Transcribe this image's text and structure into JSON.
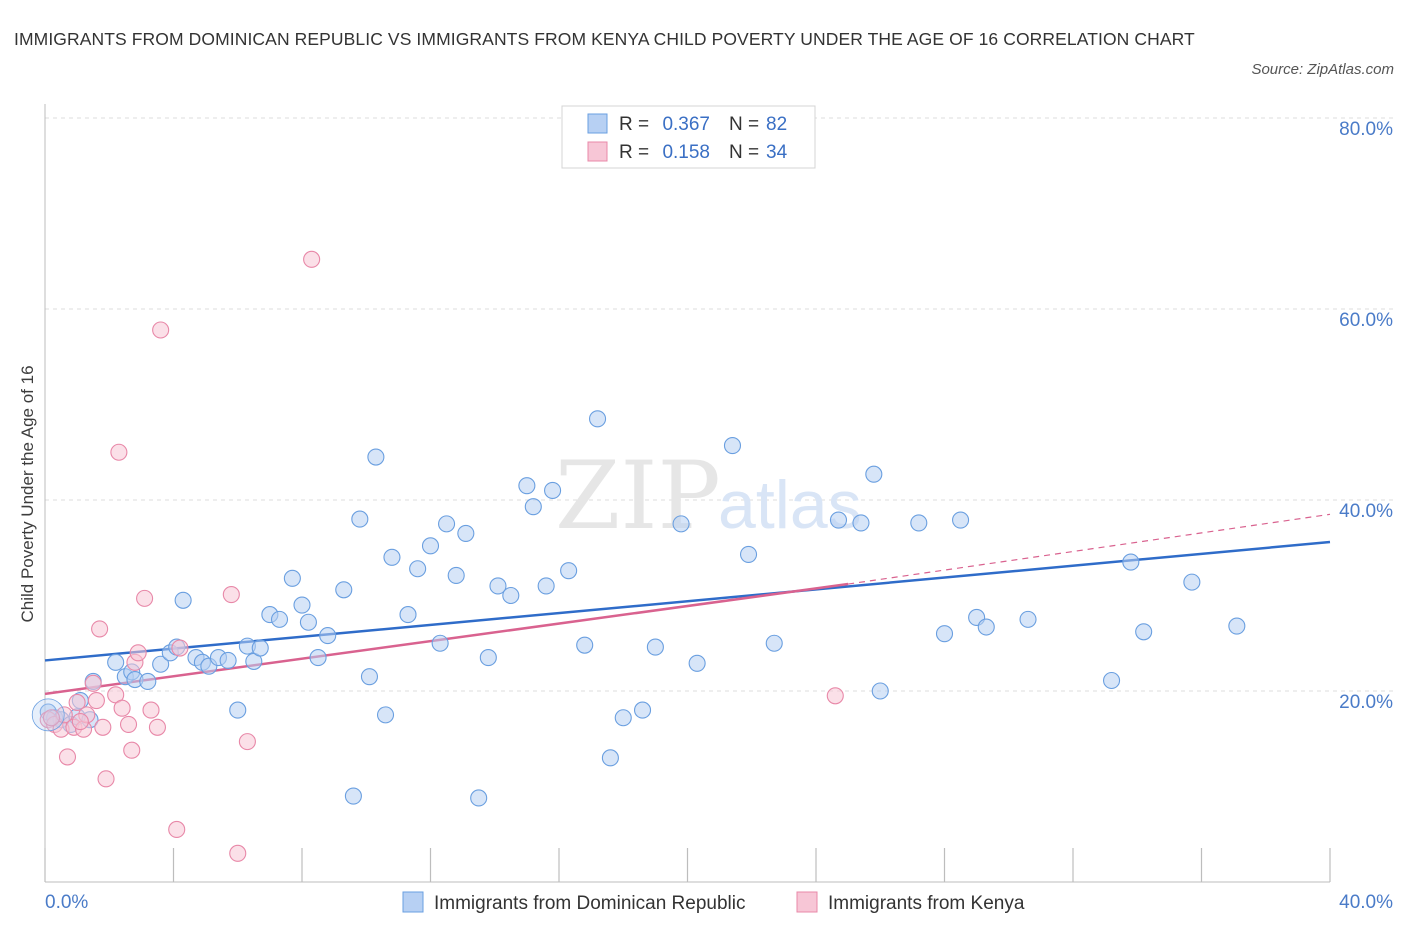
{
  "title": "IMMIGRANTS FROM DOMINICAN REPUBLIC VS IMMIGRANTS FROM KENYA CHILD POVERTY UNDER THE AGE OF 16 CORRELATION CHART",
  "source": "Source: ZipAtlas.com",
  "colors": {
    "blue": "#6a9fe0",
    "blue_fill": "#b7d0f3",
    "blue_line": "#2f6cc9",
    "pink": "#e888a8",
    "pink_fill": "#f7c6d6",
    "pink_line": "#d9628f",
    "grid": "#dcdcdc"
  },
  "chart_data": {
    "type": "scatter",
    "ylabel": "Child Poverty Under the Age of 16",
    "xlim": [
      0,
      40
    ],
    "ylim": [
      0,
      80
    ],
    "x_ticks": [
      "0.0%",
      "40.0%"
    ],
    "y_ticks": [
      {
        "value": 20,
        "label": "20.0%"
      },
      {
        "value": 40,
        "label": "40.0%"
      },
      {
        "value": 60,
        "label": "60.0%"
      },
      {
        "value": 80,
        "label": "80.0%"
      }
    ],
    "grid": true,
    "legend_position": "top-center",
    "stats": [
      {
        "r_label": "R =",
        "r": "0.367",
        "n_label": "N =",
        "n": "82"
      },
      {
        "r_label": "R =",
        "r": "0.158",
        "n_label": "N =",
        "n": "34"
      }
    ],
    "series": [
      {
        "name": "Immigrants from Dominican Republic",
        "color": "#6a9fe0",
        "trend": {
          "x": [
            0,
            40
          ],
          "y": [
            23.2,
            35.6
          ]
        },
        "points": [
          [
            0.1,
            17.8
          ],
          [
            0.3,
            17.2
          ],
          [
            0.5,
            17.0
          ],
          [
            0.8,
            16.5
          ],
          [
            1.0,
            17.3
          ],
          [
            1.1,
            19.0
          ],
          [
            1.4,
            17.0
          ],
          [
            1.5,
            21.0
          ],
          [
            2.2,
            23.0
          ],
          [
            2.5,
            21.5
          ],
          [
            2.7,
            22.0
          ],
          [
            2.8,
            21.2
          ],
          [
            3.2,
            21.0
          ],
          [
            3.6,
            22.8
          ],
          [
            3.9,
            24.0
          ],
          [
            4.1,
            24.6
          ],
          [
            4.3,
            29.5
          ],
          [
            4.7,
            23.5
          ],
          [
            4.9,
            23.0
          ],
          [
            5.1,
            22.6
          ],
          [
            5.4,
            23.5
          ],
          [
            5.7,
            23.2
          ],
          [
            6.0,
            18.0
          ],
          [
            6.3,
            24.7
          ],
          [
            6.5,
            23.1
          ],
          [
            6.7,
            24.5
          ],
          [
            7.0,
            28.0
          ],
          [
            7.3,
            27.5
          ],
          [
            7.7,
            31.8
          ],
          [
            8.0,
            29.0
          ],
          [
            8.2,
            27.2
          ],
          [
            8.5,
            23.5
          ],
          [
            8.8,
            25.8
          ],
          [
            9.3,
            30.6
          ],
          [
            9.6,
            9.0
          ],
          [
            9.8,
            38.0
          ],
          [
            10.1,
            21.5
          ],
          [
            10.3,
            44.5
          ],
          [
            10.6,
            17.5
          ],
          [
            10.8,
            34.0
          ],
          [
            11.3,
            28.0
          ],
          [
            11.6,
            32.8
          ],
          [
            12.0,
            35.2
          ],
          [
            12.3,
            25.0
          ],
          [
            12.5,
            37.5
          ],
          [
            12.8,
            32.1
          ],
          [
            13.1,
            36.5
          ],
          [
            13.5,
            8.8
          ],
          [
            13.8,
            23.5
          ],
          [
            14.1,
            31.0
          ],
          [
            14.5,
            30.0
          ],
          [
            15.0,
            41.5
          ],
          [
            15.2,
            39.3
          ],
          [
            15.6,
            31.0
          ],
          [
            15.8,
            41.0
          ],
          [
            16.3,
            32.6
          ],
          [
            16.8,
            24.8
          ],
          [
            17.2,
            48.5
          ],
          [
            17.6,
            13.0
          ],
          [
            18.0,
            17.2
          ],
          [
            18.6,
            18.0
          ],
          [
            19.0,
            24.6
          ],
          [
            19.8,
            37.5
          ],
          [
            20.3,
            22.9
          ],
          [
            21.4,
            45.7
          ],
          [
            21.9,
            34.3
          ],
          [
            22.7,
            25.0
          ],
          [
            24.7,
            37.9
          ],
          [
            25.4,
            37.6
          ],
          [
            25.8,
            42.7
          ],
          [
            26.0,
            20.0
          ],
          [
            27.2,
            37.6
          ],
          [
            28.0,
            26.0
          ],
          [
            28.5,
            37.9
          ],
          [
            29.0,
            27.7
          ],
          [
            29.3,
            26.7
          ],
          [
            30.6,
            27.5
          ],
          [
            33.2,
            21.1
          ],
          [
            33.8,
            33.5
          ],
          [
            34.2,
            26.2
          ],
          [
            35.7,
            31.4
          ],
          [
            37.1,
            26.8
          ]
        ]
      },
      {
        "name": "Immigrants from Kenya",
        "color": "#e888a8",
        "trend": {
          "x": [
            0,
            25
          ],
          "y": [
            19.7,
            31.2
          ]
        },
        "trend_dashed": {
          "x": [
            25,
            40
          ],
          "y": [
            31.2,
            38.5
          ]
        },
        "points": [
          [
            0.1,
            17.0
          ],
          [
            0.3,
            16.5
          ],
          [
            0.5,
            16.0
          ],
          [
            0.6,
            17.5
          ],
          [
            0.7,
            13.1
          ],
          [
            0.9,
            16.2
          ],
          [
            1.0,
            18.8
          ],
          [
            1.2,
            16.0
          ],
          [
            1.3,
            17.5
          ],
          [
            1.5,
            20.8
          ],
          [
            1.6,
            19.0
          ],
          [
            1.7,
            26.5
          ],
          [
            1.8,
            16.2
          ],
          [
            1.9,
            10.8
          ],
          [
            2.2,
            19.6
          ],
          [
            2.3,
            45.0
          ],
          [
            2.4,
            18.2
          ],
          [
            2.6,
            16.5
          ],
          [
            2.7,
            13.8
          ],
          [
            2.8,
            23.0
          ],
          [
            2.9,
            24.0
          ],
          [
            3.1,
            29.7
          ],
          [
            3.3,
            18.0
          ],
          [
            3.5,
            16.2
          ],
          [
            3.6,
            57.8
          ],
          [
            4.1,
            5.5
          ],
          [
            4.2,
            24.5
          ],
          [
            5.8,
            30.1
          ],
          [
            6.0,
            3.0
          ],
          [
            6.3,
            14.7
          ],
          [
            8.3,
            65.2
          ],
          [
            24.6,
            19.5
          ],
          [
            0.2,
            17.2
          ],
          [
            1.1,
            16.8
          ]
        ]
      }
    ]
  },
  "watermark": {
    "zip": "ZIP",
    "atlas": "atlas"
  }
}
